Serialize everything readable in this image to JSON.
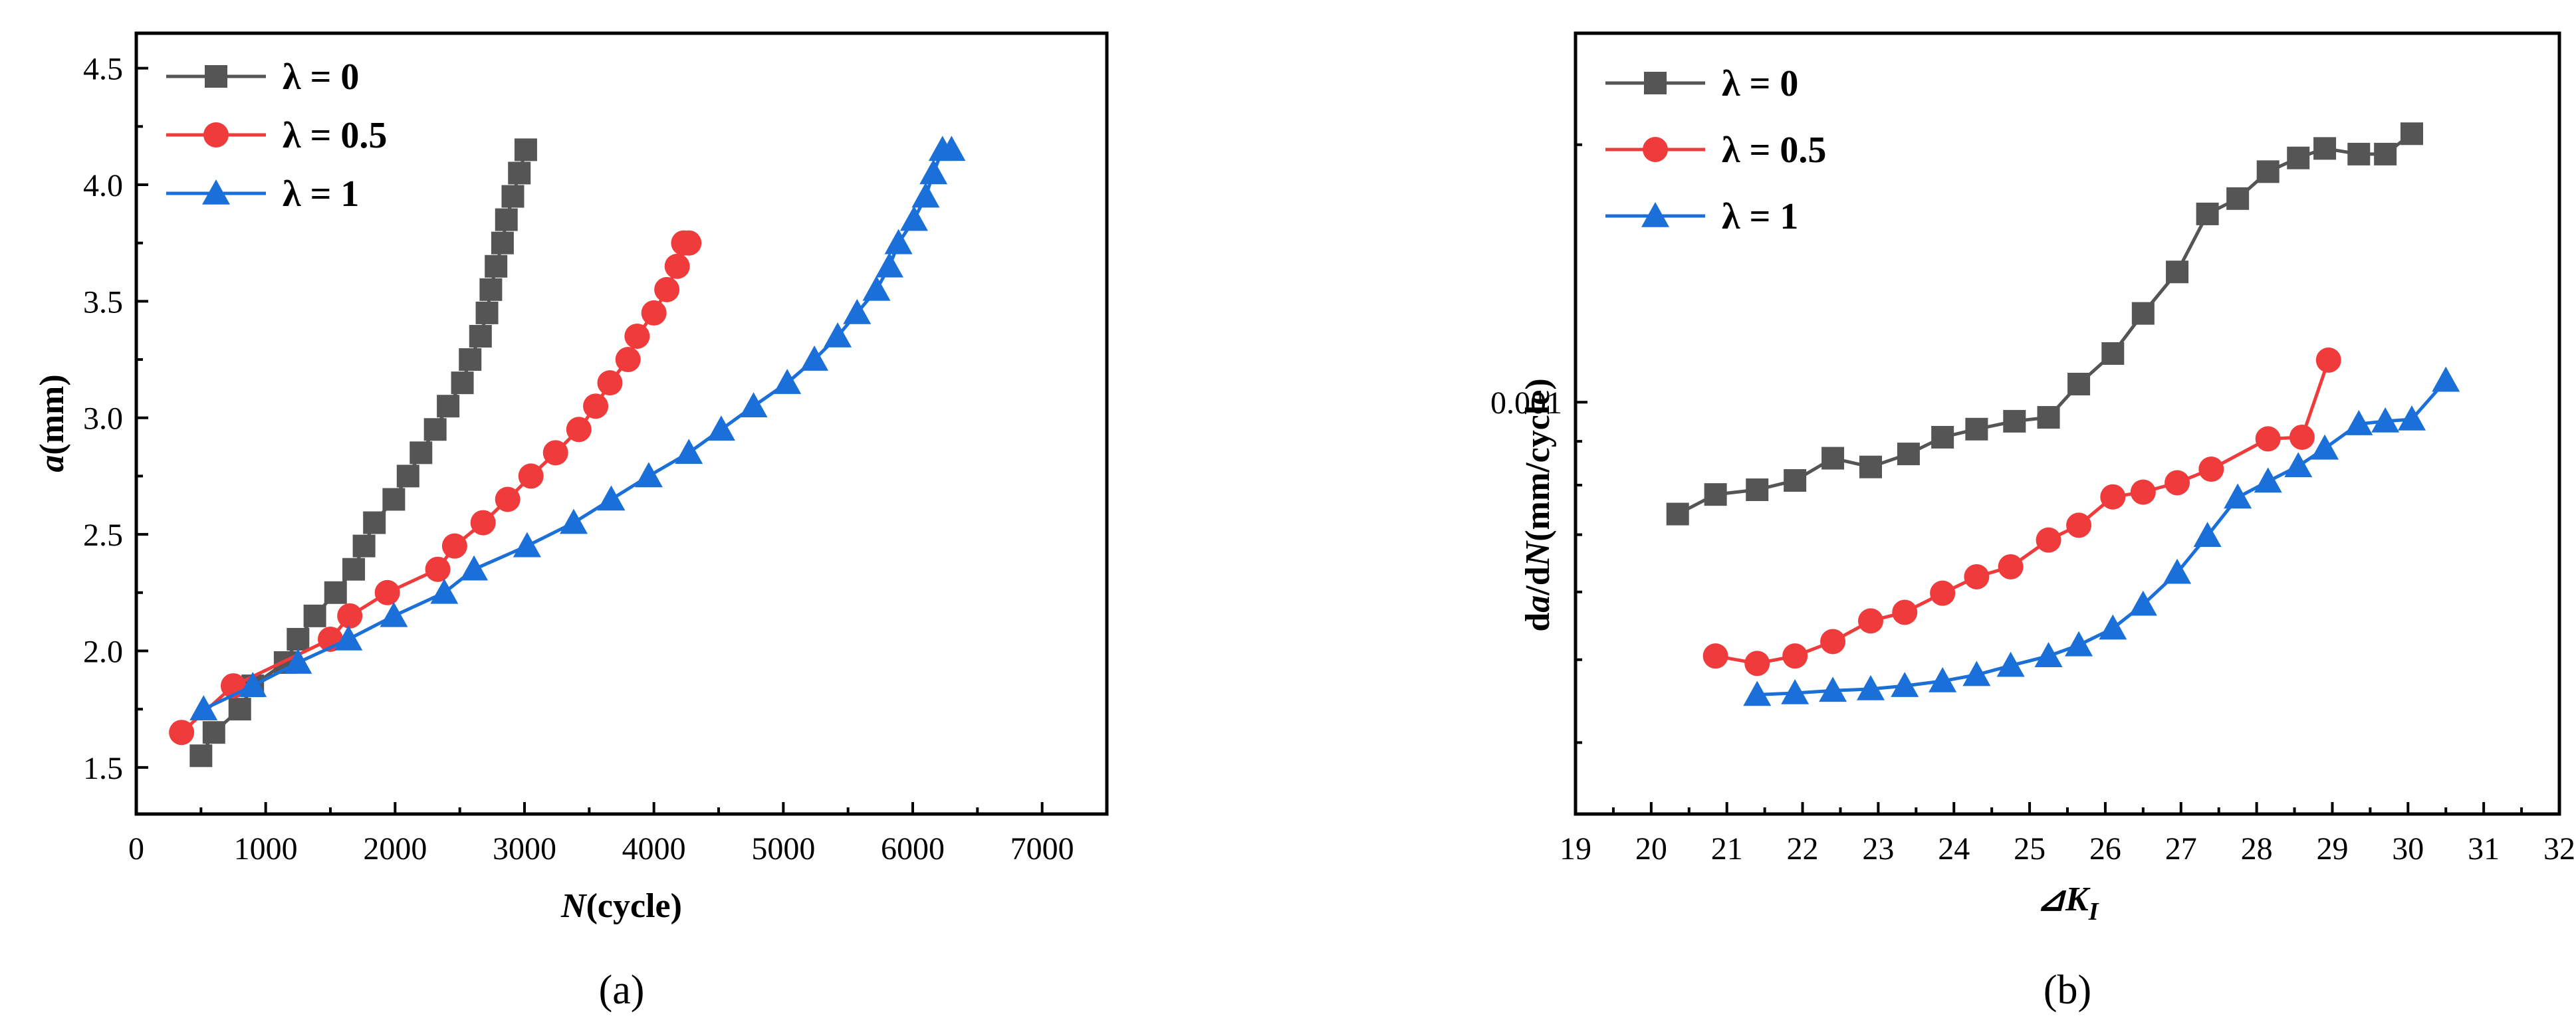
{
  "chart_data": [
    {
      "type": "line",
      "panel_label": "(a)",
      "xlabel_italic": "N",
      "xlabel_rest": "(cycle)",
      "ylabel_italic": "a",
      "ylabel_rest": "(mm)",
      "xlim": [
        0,
        7500
      ],
      "ylim": [
        1.3,
        4.65
      ],
      "xticks": [
        0,
        1000,
        2000,
        3000,
        4000,
        5000,
        6000,
        7000
      ],
      "xtick_labels": [
        "0",
        "1000",
        "2000",
        "3000",
        "4000",
        "5000",
        "6000",
        "7000"
      ],
      "yticks": [
        1.5,
        2.0,
        2.5,
        3.0,
        3.5,
        4.0,
        4.5
      ],
      "ytick_labels": [
        "1.5",
        "2.0",
        "2.5",
        "3.0",
        "3.5",
        "4.0",
        "4.5"
      ],
      "legend_position": "top-left",
      "series": [
        {
          "name": "λ = 0",
          "color": "#555555",
          "marker": "square",
          "x": [
            500,
            600,
            800,
            900,
            1150,
            1250,
            1380,
            1540,
            1680,
            1760,
            1840,
            1990,
            2100,
            2200,
            2310,
            2410,
            2520,
            2580,
            2660,
            2710,
            2740,
            2780,
            2830,
            2860,
            2910,
            2960,
            3010
          ],
          "y": [
            1.55,
            1.65,
            1.75,
            1.85,
            1.95,
            2.05,
            2.15,
            2.25,
            2.35,
            2.45,
            2.55,
            2.65,
            2.75,
            2.85,
            2.95,
            3.05,
            3.15,
            3.25,
            3.35,
            3.45,
            3.55,
            3.65,
            3.75,
            3.85,
            3.95,
            4.05,
            4.15
          ]
        },
        {
          "name": "λ = 0.5",
          "color": "#ef3b3b",
          "marker": "circle",
          "x": [
            350,
            750,
            1500,
            1650,
            1940,
            2330,
            2460,
            2680,
            2870,
            3050,
            3240,
            3420,
            3550,
            3660,
            3800,
            3870,
            4000,
            4100,
            4180,
            4230,
            4270
          ],
          "y": [
            1.65,
            1.85,
            2.05,
            2.15,
            2.25,
            2.35,
            2.45,
            2.55,
            2.65,
            2.75,
            2.85,
            2.95,
            3.05,
            3.15,
            3.25,
            3.35,
            3.45,
            3.55,
            3.65,
            3.75,
            3.75
          ]
        },
        {
          "name": "λ = 1",
          "color": "#1a6fd8",
          "marker": "triangle",
          "x": [
            520,
            900,
            1250,
            1640,
            1990,
            2380,
            2610,
            3020,
            3380,
            3670,
            3960,
            4270,
            4520,
            4770,
            5030,
            5240,
            5420,
            5570,
            5720,
            5820,
            5890,
            6010,
            6100,
            6160,
            6230,
            6300
          ],
          "y": [
            1.75,
            1.85,
            1.95,
            2.05,
            2.15,
            2.25,
            2.35,
            2.45,
            2.55,
            2.65,
            2.75,
            2.85,
            2.95,
            3.05,
            3.15,
            3.25,
            3.35,
            3.45,
            3.55,
            3.65,
            3.75,
            3.85,
            3.95,
            4.05,
            4.15,
            4.15
          ]
        }
      ]
    },
    {
      "type": "line",
      "panel_label": "(b)",
      "xlabel": "⊿K",
      "xlabel_sub": "I",
      "ylabel_parts": [
        "d",
        "a",
        "/d",
        "N",
        "(mm/cycle)"
      ],
      "y_scale": "log",
      "xlim": [
        19,
        32
      ],
      "ylim": [
        0.00033,
        0.0027
      ],
      "xticks": [
        19,
        20,
        21,
        22,
        23,
        24,
        25,
        26,
        27,
        28,
        29,
        30,
        31,
        32
      ],
      "xtick_labels": [
        "19",
        "20",
        "21",
        "22",
        "23",
        "24",
        "25",
        "26",
        "27",
        "28",
        "29",
        "30",
        "31",
        "32"
      ],
      "yticks": [
        0.001
      ],
      "ytick_labels": [
        "0.001"
      ],
      "legend_position": "top-left",
      "series": [
        {
          "name": "λ = 0",
          "color": "#555555",
          "marker": "square",
          "x": [
            20.35,
            20.85,
            21.4,
            21.9,
            22.4,
            22.9,
            23.4,
            23.85,
            24.3,
            24.8,
            25.25,
            25.65,
            26.1,
            26.5,
            26.95,
            27.35,
            27.75,
            28.15,
            28.55,
            28.9,
            29.35,
            29.7,
            30.05
          ],
          "y": [
            0.00074,
            0.00078,
            0.00079,
            0.00081,
            0.00086,
            0.00084,
            0.00087,
            0.00091,
            0.00093,
            0.00095,
            0.00096,
            0.00105,
            0.00114,
            0.00127,
            0.00142,
            0.00166,
            0.00173,
            0.00186,
            0.00193,
            0.00198,
            0.00195,
            0.00195,
            0.00206
          ]
        },
        {
          "name": "λ = 0.5",
          "color": "#ef3b3b",
          "marker": "circle",
          "x": [
            20.85,
            21.4,
            21.9,
            22.4,
            22.9,
            23.35,
            23.85,
            24.3,
            24.75,
            25.25,
            25.65,
            26.1,
            26.5,
            26.95,
            27.4,
            28.15,
            28.6,
            28.95
          ],
          "y": [
            0.000505,
            0.000495,
            0.000505,
            0.000525,
            0.000555,
            0.000568,
            0.000598,
            0.000625,
            0.000642,
            0.00069,
            0.000718,
            0.000775,
            0.000785,
            0.000805,
            0.000835,
            0.000906,
            0.00091,
            0.00112
          ]
        },
        {
          "name": "λ = 1",
          "color": "#1a6fd8",
          "marker": "triangle",
          "x": [
            21.4,
            21.9,
            22.4,
            22.9,
            23.35,
            23.85,
            24.3,
            24.75,
            25.25,
            25.65,
            26.1,
            26.5,
            26.95,
            27.35,
            27.75,
            28.15,
            28.55,
            28.9,
            29.35,
            29.7,
            30.05,
            30.5
          ],
          "y": [
            0.000455,
            0.000457,
            0.00046,
            0.000462,
            0.000466,
            0.000472,
            0.00048,
            0.000492,
            0.000505,
            0.00052,
            0.000544,
            0.00058,
            0.000632,
            0.000698,
            0.000774,
            0.000808,
            0.000842,
            0.000883,
            0.000943,
            0.00095,
            0.000955,
            0.00106
          ]
        }
      ]
    }
  ]
}
